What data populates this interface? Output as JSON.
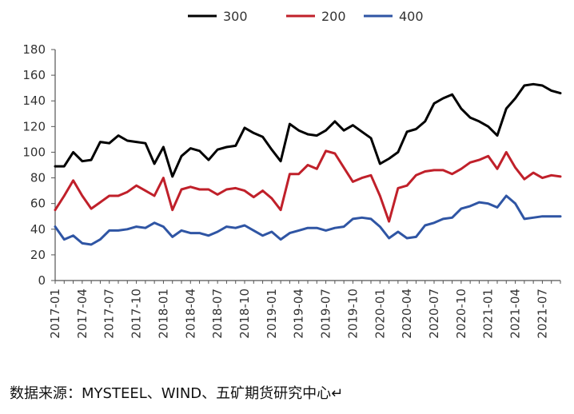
{
  "chart_data": {
    "type": "line",
    "title": "",
    "xlabel": "",
    "ylabel": "",
    "ylim": [
      0,
      180
    ],
    "yticks": [
      0,
      20,
      40,
      60,
      80,
      100,
      120,
      140,
      160,
      180
    ],
    "grid": false,
    "legend_position": "top-center",
    "months": [
      "2017-01",
      "2017-02",
      "2017-03",
      "2017-04",
      "2017-05",
      "2017-06",
      "2017-07",
      "2017-08",
      "2017-09",
      "2017-10",
      "2017-11",
      "2017-12",
      "2018-01",
      "2018-02",
      "2018-03",
      "2018-04",
      "2018-05",
      "2018-06",
      "2018-07",
      "2018-08",
      "2018-09",
      "2018-10",
      "2018-11",
      "2018-12",
      "2019-01",
      "2019-02",
      "2019-03",
      "2019-04",
      "2019-05",
      "2019-06",
      "2019-07",
      "2019-08",
      "2019-09",
      "2019-10",
      "2019-11",
      "2019-12",
      "2020-01",
      "2020-02",
      "2020-03",
      "2020-04",
      "2020-05",
      "2020-06",
      "2020-07",
      "2020-08",
      "2020-09",
      "2020-10",
      "2020-11",
      "2020-12",
      "2021-01",
      "2021-02",
      "2021-03",
      "2021-04",
      "2021-05",
      "2021-06",
      "2021-07",
      "2021-08",
      "2021-09"
    ],
    "tick_labels": [
      "2017-01",
      "2017-04",
      "2017-07",
      "2017-10",
      "2018-01",
      "2018-04",
      "2018-07",
      "2018-10",
      "2019-01",
      "2019-04",
      "2019-07",
      "2019-10",
      "2020-01",
      "2020-04",
      "2020-07",
      "2020-10",
      "2021-01",
      "2021-04",
      "2021-07"
    ],
    "series": [
      {
        "name": "300",
        "color": "#000000",
        "values": [
          89,
          89,
          100,
          93,
          94,
          108,
          107,
          113,
          109,
          108,
          107,
          91,
          104,
          81,
          97,
          103,
          101,
          94,
          102,
          104,
          105,
          119,
          115,
          112,
          102,
          93,
          122,
          117,
          114,
          113,
          117,
          124,
          117,
          121,
          116,
          111,
          91,
          95,
          100,
          116,
          118,
          124,
          138,
          142,
          145,
          134,
          127,
          124,
          120,
          113,
          134,
          142,
          152,
          153,
          152,
          148,
          146
        ]
      },
      {
        "name": "200",
        "color": "#c0202a",
        "values": [
          55,
          66,
          78,
          66,
          56,
          61,
          66,
          66,
          69,
          74,
          70,
          66,
          80,
          55,
          71,
          73,
          71,
          71,
          67,
          71,
          72,
          70,
          65,
          70,
          64,
          55,
          83,
          83,
          90,
          87,
          101,
          99,
          88,
          77,
          80,
          82,
          66,
          46,
          72,
          74,
          82,
          85,
          86,
          86,
          83,
          87,
          92,
          94,
          97,
          87,
          100,
          88,
          79,
          84,
          80,
          82,
          81
        ]
      },
      {
        "name": "400",
        "color": "#2f55a4",
        "values": [
          42,
          32,
          35,
          29,
          28,
          32,
          39,
          39,
          40,
          42,
          41,
          45,
          42,
          34,
          39,
          37,
          37,
          35,
          38,
          42,
          41,
          43,
          39,
          35,
          38,
          32,
          37,
          39,
          41,
          41,
          39,
          41,
          42,
          48,
          49,
          48,
          42,
          33,
          38,
          33,
          34,
          43,
          45,
          48,
          49,
          56,
          58,
          61,
          60,
          57,
          66,
          60,
          48,
          49,
          50,
          50,
          50
        ]
      }
    ]
  },
  "source_note": "数据来源：MYSTEEL、WIND、五矿期货研究中心↵"
}
